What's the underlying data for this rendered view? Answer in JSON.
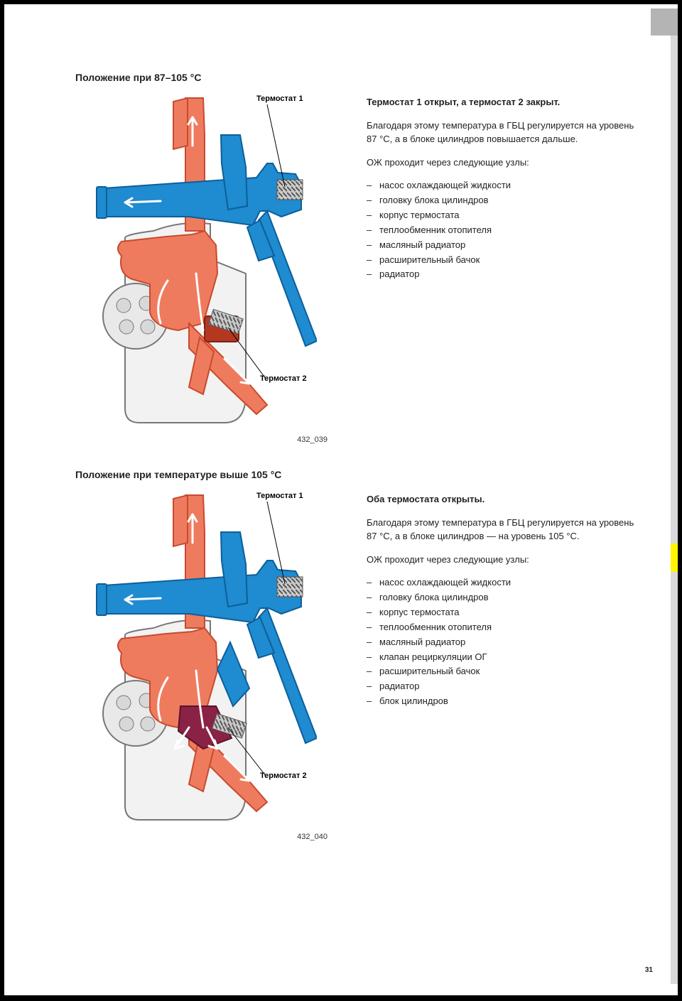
{
  "page_number": "31",
  "colors": {
    "hot": "#ef7b5f",
    "hot_dark": "#c94a2e",
    "cold": "#1f8bd0",
    "cold_dark": "#0d5f99",
    "body": "#f2f2f2",
    "body_stroke": "#777",
    "spring": "#888",
    "mix": "#8a2245",
    "arrow": "#ffffff"
  },
  "section1": {
    "heading": "Положение при 87–105 °C",
    "callouts": {
      "t1": "Термостат 1",
      "t2": "Термостат 2"
    },
    "figref": "432_039",
    "lead": "Термостат 1 открыт, а термостат 2 закрыт.",
    "para1": "Благодаря этому температура в ГБЦ регулируется на уровень 87 °C, а в блоке цилиндров повышается дальше.",
    "para2": "ОЖ проходит через следующие узлы:",
    "items": [
      "насос охлаждающей жидкости",
      "головку блока цилиндров",
      "корпус термостата",
      "теплообменник отопителя",
      "масляный радиатор",
      "расширительный бачок",
      "радиатор"
    ]
  },
  "section2": {
    "heading": "Положение при температуре выше 105 °C",
    "callouts": {
      "t1": "Термостат 1",
      "t2": "Термостат 2"
    },
    "figref": "432_040",
    "lead": "Оба термостата открыты.",
    "para1": "Благодаря этому температура в ГБЦ регулируется на уровень 87 °C, а в блоке цилиндров — на уровень 105 °C.",
    "para2": "ОЖ проходит через следующие узлы:",
    "items": [
      "насос охлаждающей жидкости",
      "головку блока цилиндров",
      "корпус термостата",
      "теплообменник отопителя",
      "масляный радиатор",
      "клапан рециркуляции ОГ",
      "расширительный бачок",
      "радиатор",
      "блок цилиндров"
    ]
  }
}
